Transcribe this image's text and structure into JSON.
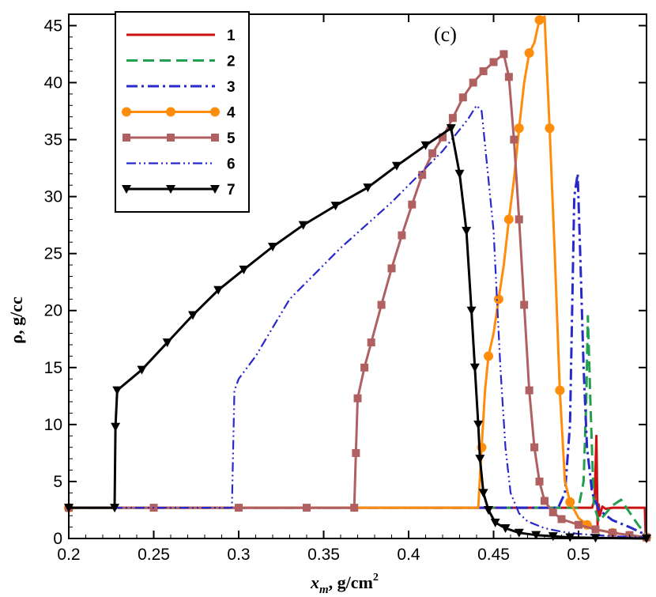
{
  "chart_data": {
    "type": "line",
    "title": "",
    "panel_label": "(c)",
    "xlabel_main": "x",
    "xlabel_sub": "m",
    "xlabel_unit": ", g/cm",
    "xlabel_sup": "2",
    "ylabel": "ρ, g/cc",
    "xlim": [
      0.2,
      0.54
    ],
    "ylim": [
      0,
      46
    ],
    "xticks": [
      0.2,
      0.25,
      0.3,
      0.35,
      0.4,
      0.45,
      0.5
    ],
    "xtick_labels": [
      "0.2",
      "0.25",
      "0.3",
      "0.35",
      "0.4",
      "0.45",
      "0.5"
    ],
    "yticks": [
      0,
      5,
      10,
      15,
      20,
      25,
      30,
      35,
      40,
      45
    ],
    "ytick_labels": [
      "0",
      "5",
      "10",
      "15",
      "20",
      "25",
      "30",
      "35",
      "40",
      "45"
    ],
    "legend_position": "top-left",
    "series": [
      {
        "name": "1",
        "color": "#cc1111",
        "dash": "",
        "width": 3,
        "marker": "none",
        "x": [
          0.2,
          0.508,
          0.5095,
          0.5105,
          0.5112,
          0.5118,
          0.5125,
          0.514,
          0.516,
          0.52,
          0.53,
          0.539,
          0.5395,
          0.54
        ],
        "y": [
          2.7,
          2.7,
          3.5,
          9.0,
          1.2,
          3.0,
          2.0,
          2.8,
          2.6,
          2.7,
          2.7,
          2.7,
          0.3,
          0
        ]
      },
      {
        "name": "2",
        "color": "#22a050",
        "dash": "14,7",
        "width": 3,
        "marker": "none",
        "x": [
          0.2,
          0.5,
          0.503,
          0.5045,
          0.5055,
          0.507,
          0.509,
          0.512,
          0.516,
          0.52,
          0.525,
          0.53,
          0.535,
          0.54
        ],
        "y": [
          2.7,
          2.7,
          5,
          12,
          19.5,
          12,
          3,
          1.5,
          2.2,
          2.9,
          3.4,
          2.3,
          1.2,
          0.3
        ]
      },
      {
        "name": "3",
        "color": "#2828cc",
        "dash": "14,5,3,5",
        "width": 3,
        "marker": "none",
        "x": [
          0.2,
          0.488,
          0.492,
          0.495,
          0.4975,
          0.4995,
          0.501,
          0.503,
          0.505,
          0.508,
          0.512,
          0.52,
          0.53,
          0.54
        ],
        "y": [
          2.7,
          2.7,
          4,
          10,
          30,
          32,
          25,
          15,
          8,
          4,
          2.5,
          1.6,
          1.0,
          0.3
        ]
      },
      {
        "name": "4",
        "color": "#ff8c0a",
        "dash": "",
        "width": 3,
        "marker": "circle",
        "marker_every": 2,
        "x": [
          0.2,
          0.441,
          0.443,
          0.445,
          0.447,
          0.45,
          0.453,
          0.456,
          0.459,
          0.462,
          0.465,
          0.468,
          0.471,
          0.474,
          0.477,
          0.48,
          0.483,
          0.486,
          0.489,
          0.492,
          0.495,
          0.5,
          0.505,
          0.51,
          0.52,
          0.53,
          0.54
        ],
        "y": [
          2.7,
          2.7,
          8,
          13,
          16,
          18,
          21,
          24,
          28,
          31.5,
          36,
          40,
          42.6,
          43.5,
          45.5,
          45.8,
          36,
          25,
          13,
          5,
          3.2,
          1.8,
          1.2,
          0.8,
          0.5,
          0.3,
          0.1
        ]
      },
      {
        "name": "5",
        "color": "#b06060",
        "dash": "",
        "width": 3,
        "marker": "square",
        "marker_every": 1,
        "x": [
          0.2,
          0.25,
          0.3,
          0.34,
          0.368,
          0.369,
          0.37,
          0.374,
          0.378,
          0.384,
          0.39,
          0.396,
          0.402,
          0.408,
          0.414,
          0.42,
          0.426,
          0.432,
          0.438,
          0.444,
          0.45,
          0.456,
          0.459,
          0.462,
          0.465,
          0.468,
          0.471,
          0.474,
          0.477,
          0.48,
          0.485,
          0.49,
          0.5,
          0.51,
          0.52,
          0.53,
          0.54
        ],
        "y": [
          2.7,
          2.7,
          2.7,
          2.7,
          2.7,
          7.5,
          12.3,
          15,
          17.2,
          20.5,
          23.7,
          26.6,
          29.3,
          31.9,
          33.8,
          35.2,
          36.9,
          38.7,
          40,
          41,
          41.8,
          42.5,
          40.5,
          35,
          28,
          20.5,
          13,
          8,
          5,
          3.3,
          2.3,
          1.7,
          1.2,
          0.8,
          0.5,
          0.3,
          0.1
        ]
      },
      {
        "name": "6",
        "color": "#2828cc",
        "dash": "12,4,2,4,2,4",
        "width": 2.2,
        "marker": "none",
        "x": [
          0.2,
          0.296,
          0.2975,
          0.3,
          0.31,
          0.33,
          0.36,
          0.39,
          0.42,
          0.435,
          0.44,
          0.443,
          0.446,
          0.45,
          0.454,
          0.457,
          0.46,
          0.465,
          0.47,
          0.48,
          0.49,
          0.5,
          0.52,
          0.54
        ],
        "y": [
          2.7,
          2.7,
          13,
          14,
          16,
          21,
          25.5,
          29.5,
          34,
          36.8,
          38,
          37.5,
          33,
          27,
          15,
          8,
          4,
          2.2,
          1.5,
          0.9,
          0.6,
          0.4,
          0.2,
          0.1
        ]
      },
      {
        "name": "7",
        "color": "#000000",
        "dash": "",
        "width": 3,
        "marker": "triangle",
        "marker_every": 1,
        "x": [
          0.2,
          0.227,
          0.2275,
          0.2285,
          0.243,
          0.258,
          0.273,
          0.288,
          0.303,
          0.32,
          0.338,
          0.357,
          0.376,
          0.393,
          0.41,
          0.425,
          0.43,
          0.434,
          0.437,
          0.439,
          0.441,
          0.442,
          0.444,
          0.447,
          0.451,
          0.457,
          0.465,
          0.475,
          0.485,
          0.495,
          0.51,
          0.54
        ],
        "y": [
          2.7,
          2.7,
          9.8,
          13,
          14.8,
          17.2,
          19.6,
          21.8,
          23.6,
          25.6,
          27.5,
          29.2,
          30.8,
          32.7,
          34.5,
          36,
          32,
          27,
          20,
          15,
          10,
          7,
          4,
          2.5,
          1.4,
          0.9,
          0.5,
          0.3,
          0.2,
          0.1,
          0.05,
          0
        ]
      }
    ]
  }
}
